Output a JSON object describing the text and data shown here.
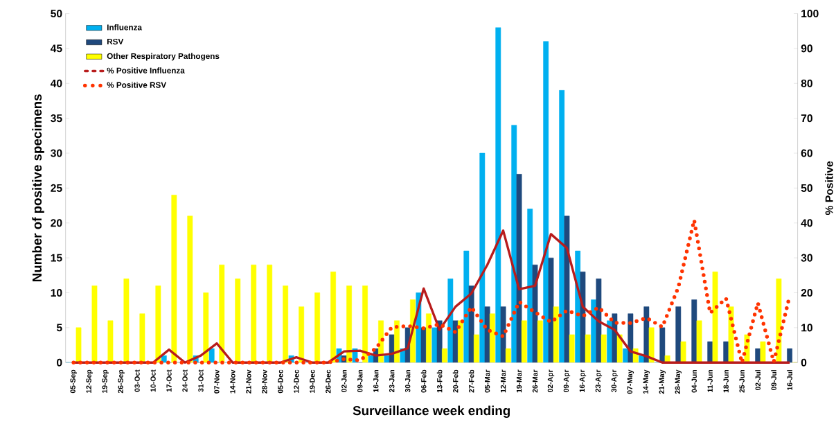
{
  "chart_data": {
    "type": "bar",
    "xlabel": "Surveillance week ending",
    "ylabel": "Number of positive specimens",
    "y2label": "% Positive",
    "categories": [
      "05-Sep",
      "12-Sep",
      "19-Sep",
      "26-Sep",
      "03-Oct",
      "10-Oct",
      "17-Oct",
      "24-Oct",
      "31-Oct",
      "07-Nov",
      "14-Nov",
      "21-Nov",
      "28-Nov",
      "05-Dec",
      "12-Dec",
      "19-Dec",
      "26-Dec",
      "02-Jan",
      "09-Jan",
      "16-Jan",
      "23-Jan",
      "30-Jan",
      "06-Feb",
      "13-Feb",
      "20-Feb",
      "27-Feb",
      "05-Mar",
      "12-Mar",
      "19-Mar",
      "26-Mar",
      "02-Apr",
      "09-Apr",
      "16-Apr",
      "23-Apr",
      "30-Apr",
      "07-May",
      "14-May",
      "21-May",
      "28-May",
      "04-Jun",
      "11-Jun",
      "18-Jun",
      "25-Jun",
      "02-Jul",
      "09-Jul",
      "16-Jul"
    ],
    "series": [
      {
        "name": "Influenza",
        "color": "#00b0f0",
        "values": [
          0,
          0,
          0,
          0,
          0,
          0,
          1,
          0,
          1,
          2,
          0,
          0,
          0,
          0,
          1,
          0,
          0,
          2,
          2,
          1,
          1,
          2,
          10,
          5,
          12,
          16,
          30,
          48,
          34,
          22,
          46,
          39,
          16,
          9,
          6,
          2,
          1,
          0,
          0,
          0,
          0,
          0,
          0,
          0,
          0,
          0
        ]
      },
      {
        "name": "RSV",
        "color": "#1f497d",
        "values": [
          0,
          0,
          0,
          0,
          0,
          0,
          0,
          0,
          0,
          0,
          0,
          0,
          0,
          0,
          0,
          0,
          0,
          1,
          0,
          2,
          4,
          5,
          5,
          6,
          6,
          11,
          8,
          8,
          27,
          14,
          15,
          21,
          13,
          12,
          7,
          7,
          8,
          5,
          8,
          9,
          3,
          3,
          0,
          2,
          0,
          2
        ]
      },
      {
        "name": "Other Respiratory Pathogens",
        "color": "#ffff00",
        "values": [
          5,
          11,
          6,
          12,
          7,
          11,
          24,
          21,
          10,
          14,
          12,
          14,
          14,
          11,
          8,
          10,
          13,
          11,
          11,
          6,
          6,
          9,
          7,
          2,
          6,
          4,
          7,
          2,
          6,
          6,
          8,
          4,
          4,
          4,
          4,
          2,
          5,
          1,
          3,
          6,
          13,
          8,
          4,
          3,
          12,
          0
        ]
      },
      {
        "name": "% Positive Influenza",
        "type": "line",
        "axis": "y2",
        "line_style": "solid",
        "color": "#b81c1c",
        "values": [
          0,
          0,
          0,
          0,
          0,
          0,
          3.7,
          0,
          2,
          5.5,
          0,
          0,
          0,
          0,
          1.5,
          0,
          0,
          3.2,
          3.4,
          2,
          2.5,
          4.1,
          21.2,
          9.4,
          16,
          19.8,
          28,
          37.8,
          21,
          22,
          36.8,
          32.8,
          16,
          11.8,
          9.4,
          3.2,
          1.8,
          0,
          0,
          0,
          0,
          0,
          0,
          0,
          0,
          0
        ]
      },
      {
        "name": "% Positive RSV",
        "type": "line",
        "axis": "y2",
        "line_style": "dotted",
        "color": "#ff3300",
        "values": [
          0,
          0,
          0,
          0,
          0,
          0,
          0,
          0,
          0,
          0,
          0,
          0,
          0,
          0,
          0,
          0,
          0,
          1,
          0.6,
          4.1,
          10.1,
          10.5,
          9.8,
          11,
          8.7,
          15.9,
          9.4,
          7.5,
          17.4,
          14.4,
          11.6,
          14.9,
          13.3,
          15.8,
          11.4,
          11.3,
          12.8,
          10.2,
          21.5,
          40.8,
          14.2,
          18.4,
          0,
          17.1,
          0.2,
          19.1
        ]
      }
    ],
    "ylim": [
      0,
      50
    ],
    "yticks": [
      0,
      5,
      10,
      15,
      20,
      25,
      30,
      35,
      40,
      45,
      50
    ],
    "y2lim": [
      0,
      100
    ],
    "y2ticks": [
      0,
      10,
      20,
      30,
      40,
      50,
      60,
      70,
      80,
      90,
      100
    ],
    "legend": "top left"
  }
}
